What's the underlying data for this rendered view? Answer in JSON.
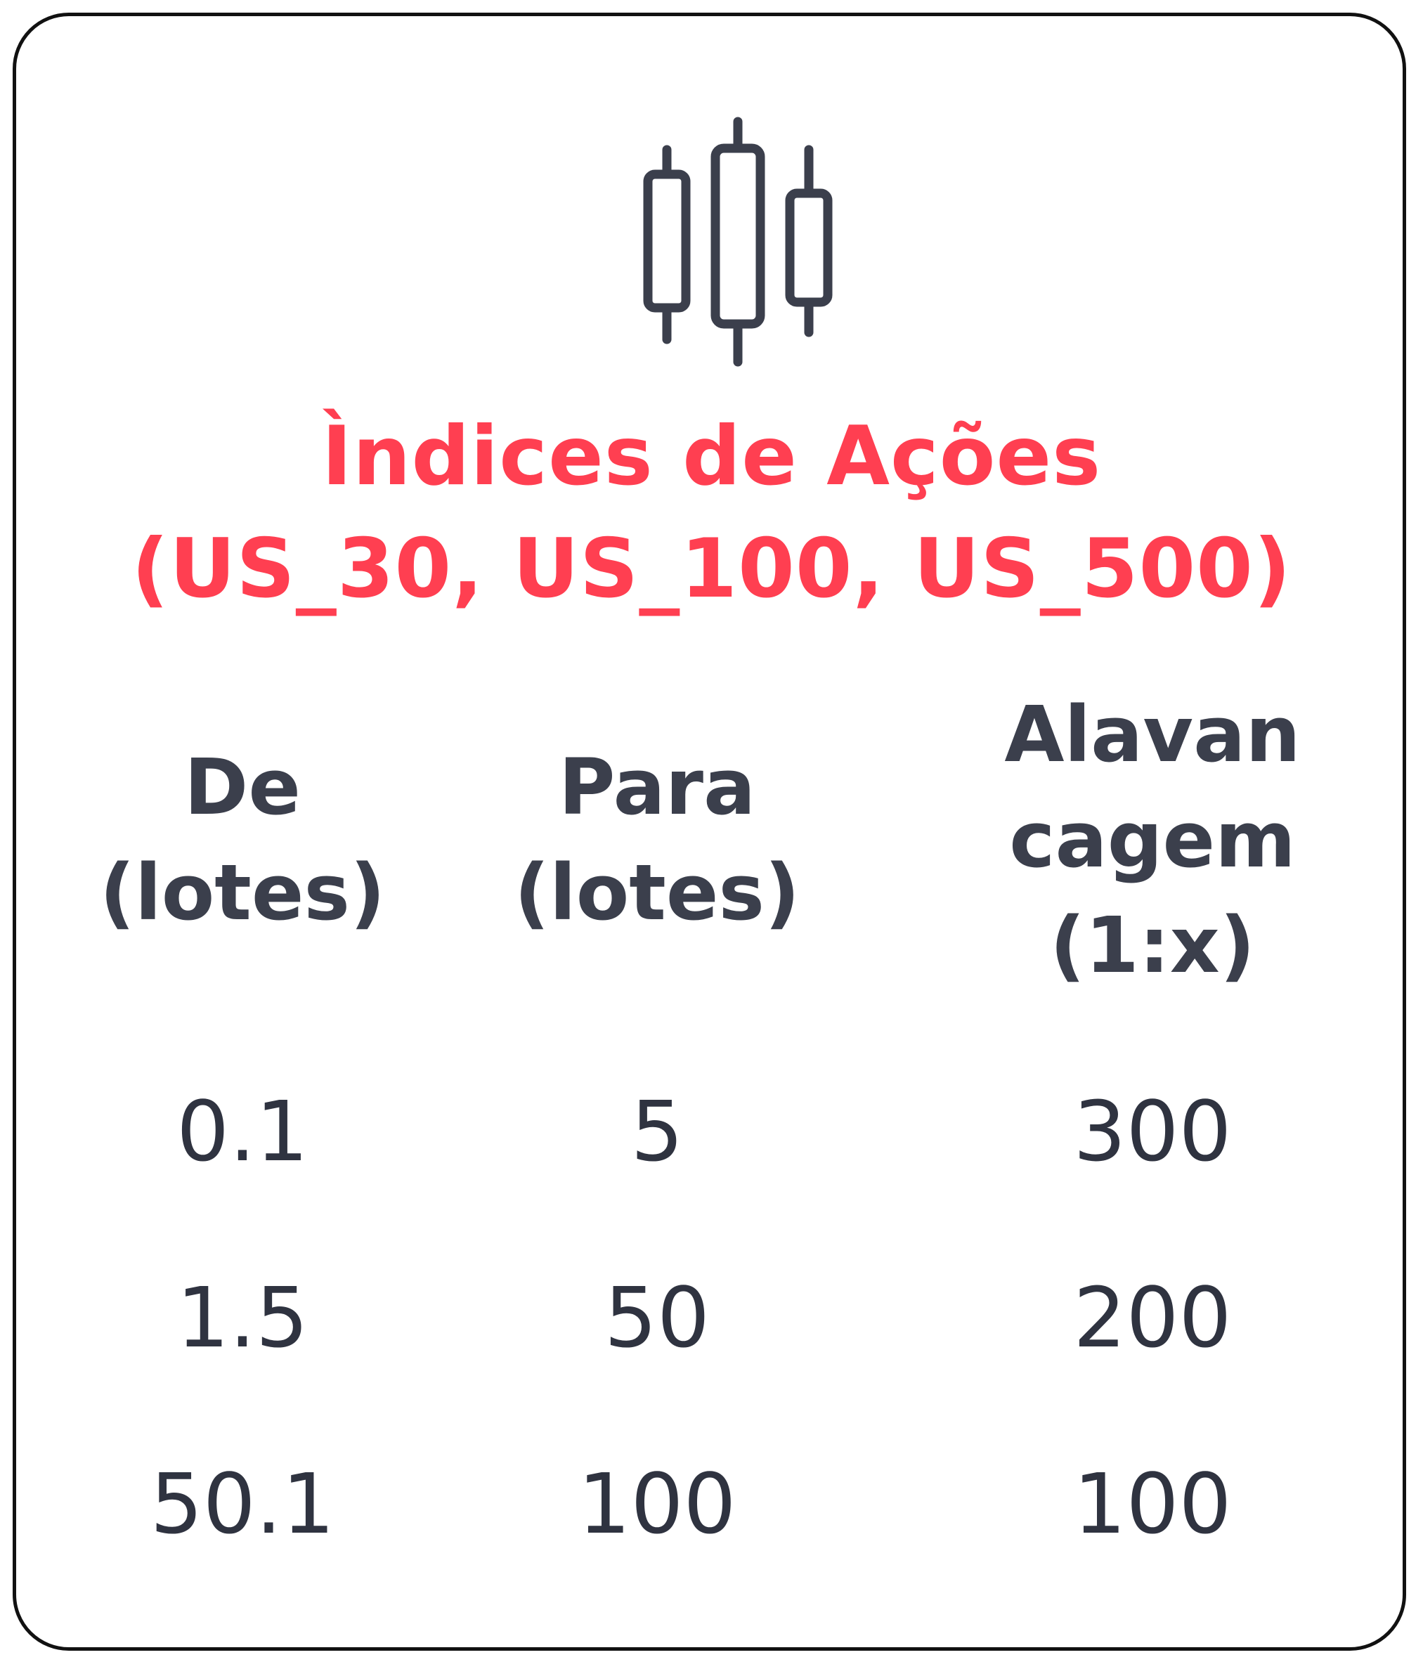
{
  "icon": "candlestick-chart-icon",
  "colors": {
    "title": "#ff3f51",
    "text": "#3b3f4c",
    "border": "#111111"
  },
  "title": {
    "line1": "Ìndices de Ações",
    "line2": "(US_30, US_100, US_500)"
  },
  "table": {
    "headers": [
      {
        "lines": [
          "De",
          "(lotes)"
        ]
      },
      {
        "lines": [
          "Para",
          "(lotes)"
        ]
      },
      {
        "lines": [
          "Alavan",
          "cagem",
          "(1:x)"
        ]
      }
    ],
    "rows": [
      [
        "0.1",
        "5",
        "300"
      ],
      [
        "1.5",
        "50",
        "200"
      ],
      [
        "50.1",
        "100",
        "100"
      ]
    ]
  }
}
